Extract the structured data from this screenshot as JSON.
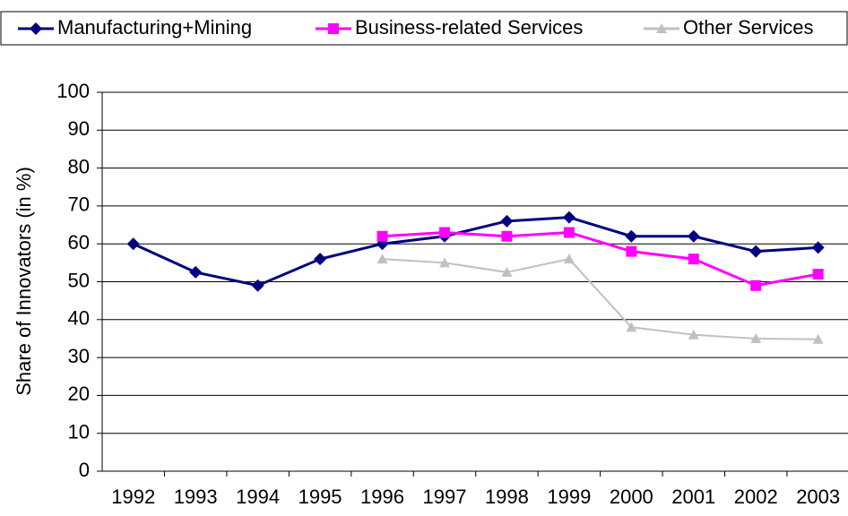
{
  "chart_data": {
    "type": "line",
    "y_label": "Share of Innovators (in %)",
    "categories": [
      "1992",
      "1993",
      "1994",
      "1995",
      "1996",
      "1997",
      "1998",
      "1999",
      "2000",
      "2001",
      "2002",
      "2003"
    ],
    "series": [
      {
        "name": "Manufacturing+Mining",
        "color": "#000080",
        "marker": "diamond",
        "values": [
          60,
          52.5,
          49,
          56,
          60,
          62,
          66,
          67,
          62,
          62,
          58,
          59
        ]
      },
      {
        "name": "Business-related Services",
        "color": "#ff00ff",
        "marker": "square",
        "values": [
          null,
          null,
          null,
          null,
          62,
          63,
          62,
          63,
          58,
          56,
          49,
          52
        ]
      },
      {
        "name": "Other Services",
        "color": "#c0c0c0",
        "marker": "triangle",
        "values": [
          null,
          null,
          null,
          null,
          56,
          55,
          52.5,
          56,
          38,
          36,
          35,
          34.8
        ]
      }
    ],
    "ylim": [
      0,
      100
    ],
    "yticks": [
      0,
      10,
      20,
      30,
      40,
      50,
      60,
      70,
      80,
      90,
      100
    ],
    "grid": true,
    "legend": "top"
  }
}
